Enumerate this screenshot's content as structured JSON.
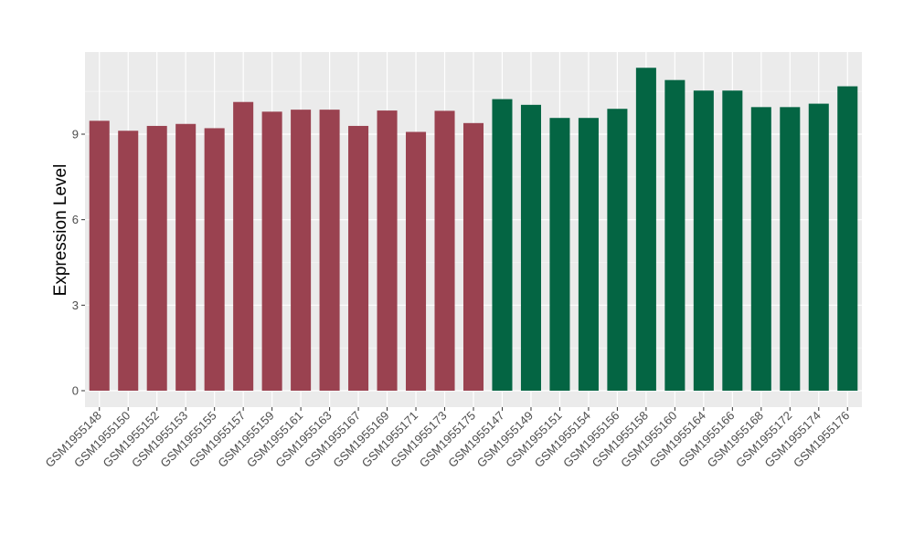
{
  "chart_data": {
    "type": "bar",
    "ylabel": "Expression Level",
    "xlabel": "",
    "ylim": [
      0,
      11.9
    ],
    "yticks": [
      0,
      3,
      6,
      9
    ],
    "grid": true,
    "background": "#ebebeb",
    "categories": [
      "GSM1955148",
      "GSM1955150",
      "GSM1955152",
      "GSM1955153",
      "GSM1955155",
      "GSM1955157",
      "GSM1955159",
      "GSM1955161",
      "GSM1955163",
      "GSM1955167",
      "GSM1955169",
      "GSM1955171",
      "GSM1955173",
      "GSM1955175",
      "GSM1955147",
      "GSM1955149",
      "GSM1955151",
      "GSM1955154",
      "GSM1955156",
      "GSM1955158",
      "GSM1955160",
      "GSM1955164",
      "GSM1955166",
      "GSM1955168",
      "GSM1955172",
      "GSM1955174",
      "GSM1955176"
    ],
    "values": [
      9.47,
      9.12,
      9.29,
      9.36,
      9.21,
      10.13,
      9.79,
      9.86,
      9.86,
      9.29,
      9.83,
      9.08,
      9.82,
      9.39,
      10.23,
      10.03,
      9.57,
      9.57,
      9.89,
      11.33,
      10.9,
      10.53,
      10.53,
      9.95,
      9.95,
      10.07,
      10.68
    ],
    "group_sizes": [
      14,
      13
    ],
    "group_colors": [
      "#9a4250",
      "#046543"
    ]
  }
}
